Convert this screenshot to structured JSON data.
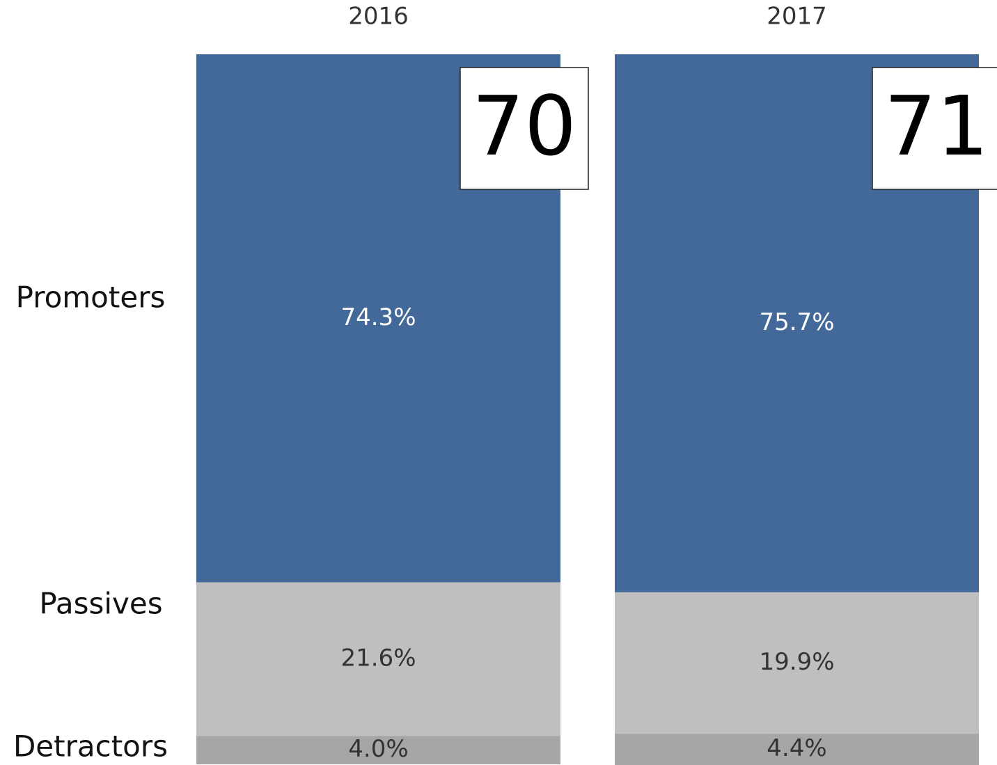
{
  "chart_data": {
    "type": "bar",
    "stacked": true,
    "categories": [
      "2016",
      "2017"
    ],
    "ylim": [
      0,
      100
    ],
    "series": [
      {
        "name": "Promoters",
        "color": "#426999",
        "values": [
          74.3,
          75.7
        ],
        "value_labels": [
          "74.3%",
          "75.7%"
        ]
      },
      {
        "name": "Passives",
        "color": "#bfbfbf",
        "values": [
          21.6,
          19.9
        ],
        "value_labels": [
          "21.6%",
          "19.9%"
        ]
      },
      {
        "name": "Detractors",
        "color": "#a6a6a6",
        "values": [
          4.0,
          4.4
        ],
        "value_labels": [
          "4.0%",
          "4.4%"
        ]
      }
    ],
    "scores": [
      70,
      71
    ]
  }
}
